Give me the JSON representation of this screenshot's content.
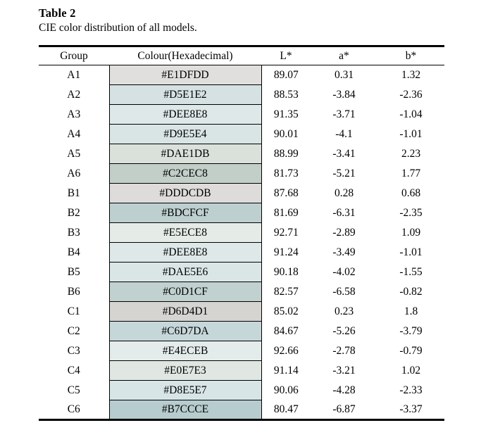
{
  "doc": {
    "table_label": "Table 2",
    "caption": "CIE color distribution of all models."
  },
  "table": {
    "columns": [
      "Group",
      "Colour(Hexadecimal)",
      "L*",
      "a*",
      "b*"
    ],
    "rows": [
      {
        "group": "A1",
        "hex": "#E1DFDD",
        "l": "89.07",
        "a": "0.31",
        "b": "1.32"
      },
      {
        "group": "A2",
        "hex": "#D5E1E2",
        "l": "88.53",
        "a": "-3.84",
        "b": "-2.36"
      },
      {
        "group": "A3",
        "hex": "#DEE8E8",
        "l": "91.35",
        "a": "-3.71",
        "b": "-1.04"
      },
      {
        "group": "A4",
        "hex": "#D9E5E4",
        "l": "90.01",
        "a": "-4.1",
        "b": "-1.01"
      },
      {
        "group": "A5",
        "hex": "#DAE1DB",
        "l": "88.99",
        "a": "-3.41",
        "b": "2.23"
      },
      {
        "group": "A6",
        "hex": "#C2CEC8",
        "l": "81.73",
        "a": "-5.21",
        "b": "1.77"
      },
      {
        "group": "B1",
        "hex": "#DDDCDB",
        "l": "87.68",
        "a": "0.28",
        "b": "0.68"
      },
      {
        "group": "B2",
        "hex": "#BDCFCF",
        "l": "81.69",
        "a": "-6.31",
        "b": "-2.35"
      },
      {
        "group": "B3",
        "hex": "#E5ECE8",
        "l": "92.71",
        "a": "-2.89",
        "b": "1.09"
      },
      {
        "group": "B4",
        "hex": "#DEE8E8",
        "l": "91.24",
        "a": "-3.49",
        "b": "-1.01"
      },
      {
        "group": "B5",
        "hex": "#DAE5E6",
        "l": "90.18",
        "a": "-4.02",
        "b": "-1.55"
      },
      {
        "group": "B6",
        "hex": "#C0D1CF",
        "l": "82.57",
        "a": "-6.58",
        "b": "-0.82"
      },
      {
        "group": "C1",
        "hex": "#D6D4D1",
        "l": "85.02",
        "a": "0.23",
        "b": "1.8"
      },
      {
        "group": "C2",
        "hex": "#C6D7DA",
        "l": "84.67",
        "a": "-5.26",
        "b": "-3.79"
      },
      {
        "group": "C3",
        "hex": "#E4ECEB",
        "l": "92.66",
        "a": "-2.78",
        "b": "-0.79"
      },
      {
        "group": "C4",
        "hex": "#E0E7E3",
        "l": "91.14",
        "a": "-3.21",
        "b": "1.02"
      },
      {
        "group": "C5",
        "hex": "#D8E5E7",
        "l": "90.06",
        "a": "-4.28",
        "b": "-2.33"
      },
      {
        "group": "C6",
        "hex": "#B7CCCE",
        "l": "80.47",
        "a": "-6.87",
        "b": "-3.37"
      }
    ]
  }
}
